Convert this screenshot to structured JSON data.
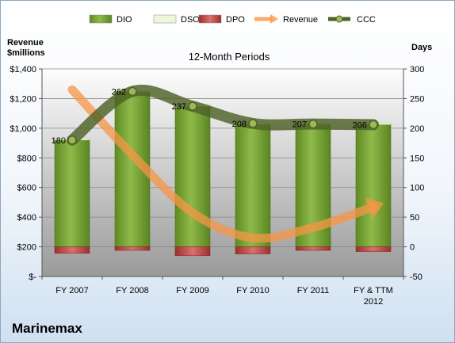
{
  "company": "Marinemax",
  "chart_data": {
    "type": "bar",
    "title": "12-Month Periods",
    "left_axis_label_line1": "Revenue",
    "left_axis_label_line2": "$millions",
    "right_axis_label": "Days",
    "categories": [
      "FY 2007",
      "FY 2008",
      "FY 2009",
      "FY 2010",
      "FY 2011",
      "FY & TTM 2012"
    ],
    "left_axis": {
      "range": [
        0,
        1400
      ],
      "ticks": [
        0,
        200,
        400,
        600,
        800,
        1000,
        1200,
        1400
      ],
      "tick_labels": [
        "$-",
        "$200",
        "$400",
        "$600",
        "$800",
        "$1,000",
        "$1,200",
        "$1,400"
      ]
    },
    "right_axis": {
      "range": [
        -50,
        300
      ],
      "ticks": [
        -50,
        0,
        50,
        100,
        150,
        200,
        250,
        300
      ]
    },
    "series": [
      {
        "name": "DIO",
        "type": "bar",
        "color": "#7aa33a",
        "values": [
          180,
          262,
          237,
          207,
          207,
          206
        ]
      },
      {
        "name": "DSO",
        "type": "bar-stacked",
        "color": "#eef6dc",
        "values": [
          3,
          3,
          3,
          3,
          2,
          3
        ]
      },
      {
        "name": "DPO",
        "type": "bar-negative",
        "color": "#c0504d",
        "values": [
          -11,
          -6,
          -15,
          -12,
          -6,
          -8
        ]
      },
      {
        "name": "Revenue",
        "type": "arrow-curve",
        "color": "#f79646",
        "values": [
          1260,
          820,
          430,
          260,
          330,
          470
        ]
      },
      {
        "name": "CCC",
        "type": "line",
        "color": "#4f6228",
        "values": [
          180,
          262,
          237,
          208,
          207,
          206
        ],
        "labels": [
          "180",
          "262",
          "237",
          "208",
          "207",
          "206"
        ]
      }
    ],
    "legend_position": "top",
    "grid": true
  }
}
